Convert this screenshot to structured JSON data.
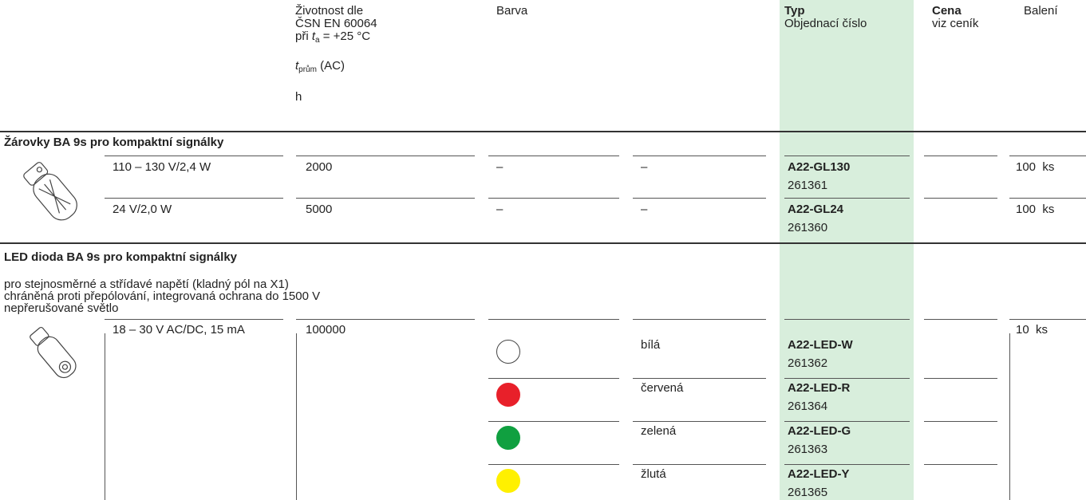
{
  "header": {
    "life": {
      "lines": [
        "Životnost dle",
        "ČSN EN 60064"
      ],
      "temp": {
        "prefix": "při ",
        "symbol": "t",
        "subscript": "a",
        "suffix": " = +25 °C"
      },
      "avg": {
        "symbol": "t",
        "subscript": "prům",
        "suffix": " (AC)"
      },
      "unit": "h"
    },
    "color": "Barva",
    "type": {
      "title": "Typ",
      "subtitle": "Objednací číslo"
    },
    "price": {
      "title": "Cena",
      "subtitle": "viz ceník"
    },
    "packaging": "Balení"
  },
  "sections": [
    {
      "title": "Žárovky BA 9s pro kompaktní signálky",
      "rows": [
        {
          "voltage": "110 – 130 V/2,4 W",
          "life": "2000",
          "color": "–",
          "color_name": "–",
          "type": "A22-GL130",
          "order_number": "261361",
          "packaging": "100  ks"
        },
        {
          "voltage": "24 V/2,0 W",
          "life": "5000",
          "color": "–",
          "color_name": "–",
          "type": "A22-GL24",
          "order_number": "261360",
          "packaging": "100  ks"
        }
      ]
    },
    {
      "title": "LED dioda BA 9s pro kompaktní signálky",
      "description": [
        "pro stejnosměrné a střídavé napětí (kladný pól na X1)",
        "chráněná proti přepólování, integrovaná ochrana do 1500 V",
        "nepřerušované světlo"
      ],
      "voltage": "18 – 30 V AC/DC, 15 mA",
      "life": "100000",
      "packaging": "10  ks",
      "variants": [
        {
          "swatch": "#ffffff",
          "color_name": "bílá",
          "type": "A22-LED-W",
          "order_number": "261362"
        },
        {
          "swatch": "#e8202a",
          "color_name": "červená",
          "type": "A22-LED-R",
          "order_number": "261364"
        },
        {
          "swatch": "#10a040",
          "color_name": "zelená",
          "type": "A22-LED-G",
          "order_number": "261363"
        },
        {
          "swatch": "#fff000",
          "color_name": "žlutá",
          "type": "A22-LED-Y",
          "order_number": "261365"
        }
      ]
    }
  ]
}
